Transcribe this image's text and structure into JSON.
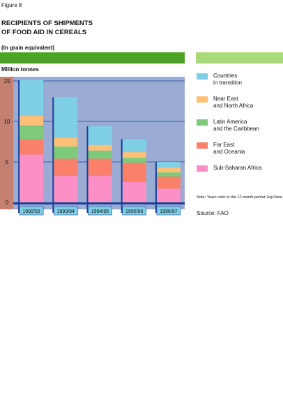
{
  "figure_label": "Figure 8",
  "title_line1": "RECIPIENTS OF SHIPMENTS",
  "title_line2": "OF FOOD AID IN CEREALS",
  "subtitle": "(In grain equivalent)",
  "colors": {
    "countries_in_transition": "#7fd0e6",
    "near_east_north_africa": "#fdc07a",
    "latin_america_caribbean": "#7dcb7a",
    "far_east_oceania": "#fb806a",
    "sub_saharan_africa": "#fc8fc6",
    "plot_bg": "#9aabd4",
    "axis_band": "#c58070",
    "header_green": "#4ea226",
    "header_light_green": "#a8da7c",
    "bar_edge": "#1b3f9a"
  },
  "legend": [
    {
      "key": "countries_in_transition",
      "line1": "Countries",
      "line2": "in transition"
    },
    {
      "key": "near_east_north_africa",
      "line1": "Near East",
      "line2": "and North Africa"
    },
    {
      "key": "latin_america_caribbean",
      "line1": "Latin America",
      "line2": "and the Caribbean"
    },
    {
      "key": "far_east_oceania",
      "line1": "Far East",
      "line2": "and Oceania"
    },
    {
      "key": "sub_saharan_africa",
      "line1": "Sub-Saharan Africa",
      "line2": ""
    }
  ],
  "note": "Note: Years refer to the 12-month period July/June",
  "source": "Source: FAO",
  "chart_data": {
    "type": "bar",
    "stacked": true,
    "ylabel": "Million tonnes",
    "ylim": [
      0,
      15
    ],
    "yticks": [
      0,
      5,
      10,
      15
    ],
    "grid": true,
    "legend_position": "right",
    "categories": [
      "1992/93",
      "1993/94",
      "1994/95",
      "1995/96",
      "1996/97"
    ],
    "series": [
      {
        "key": "sub_saharan_africa",
        "name": "Sub-Saharan Africa",
        "values": [
          5.9,
          3.3,
          3.3,
          2.5,
          1.7
        ]
      },
      {
        "key": "far_east_oceania",
        "name": "Far East and Oceania",
        "values": [
          1.9,
          2.1,
          2.1,
          2.4,
          1.5
        ]
      },
      {
        "key": "latin_america_caribbean",
        "name": "Latin America and the Caribbean",
        "values": [
          1.7,
          1.5,
          1.0,
          0.6,
          0.5
        ]
      },
      {
        "key": "near_east_north_africa",
        "name": "Near East and North Africa",
        "values": [
          1.2,
          1.1,
          0.7,
          0.7,
          0.6
        ]
      },
      {
        "key": "countries_in_transition",
        "name": "Countries in transition",
        "values": [
          4.4,
          5.0,
          2.3,
          1.6,
          0.7
        ]
      }
    ]
  }
}
